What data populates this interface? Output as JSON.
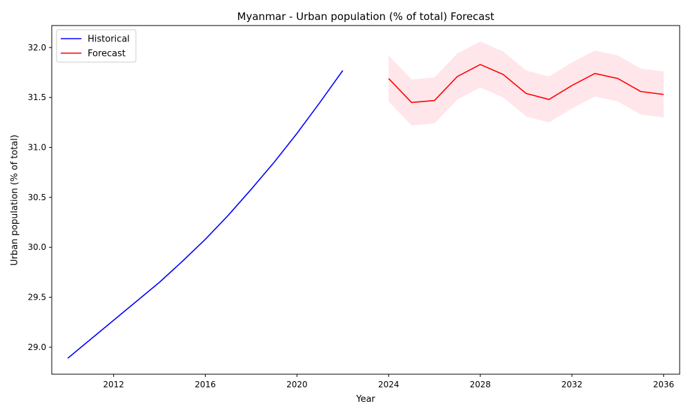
{
  "chart_data": {
    "type": "line",
    "title": "Myanmar - Urban population (% of total) Forecast",
    "xlabel": "Year",
    "ylabel": "Urban population (% of total)",
    "xlim": [
      2009.3,
      2036.7
    ],
    "ylim": [
      28.73,
      32.22
    ],
    "x_ticks": [
      2012,
      2016,
      2020,
      2024,
      2028,
      2032,
      2036
    ],
    "y_ticks": [
      29.0,
      29.5,
      30.0,
      30.5,
      31.0,
      31.5,
      32.0
    ],
    "grid": false,
    "legend_position": "upper-left",
    "series": [
      {
        "name": "Historical",
        "color": "#0000ff",
        "x": [
          2010,
          2011,
          2012,
          2013,
          2014,
          2015,
          2016,
          2017,
          2018,
          2019,
          2020,
          2021,
          2022
        ],
        "values": [
          28.89,
          29.08,
          29.27,
          29.46,
          29.65,
          29.86,
          30.08,
          30.32,
          30.58,
          30.85,
          31.14,
          31.45,
          31.77
        ]
      },
      {
        "name": "Forecast",
        "color": "#ff0000",
        "x": [
          2024,
          2025,
          2026,
          2027,
          2028,
          2029,
          2030,
          2031,
          2032,
          2033,
          2034,
          2035,
          2036
        ],
        "values": [
          31.69,
          31.45,
          31.47,
          31.71,
          31.83,
          31.73,
          31.54,
          31.48,
          31.62,
          31.74,
          31.69,
          31.56,
          31.53
        ],
        "lower": [
          31.46,
          31.22,
          31.24,
          31.48,
          31.6,
          31.5,
          31.31,
          31.25,
          31.39,
          31.51,
          31.46,
          31.33,
          31.3
        ],
        "upper": [
          31.92,
          31.68,
          31.7,
          31.94,
          32.06,
          31.96,
          31.77,
          31.71,
          31.85,
          31.97,
          31.92,
          31.79,
          31.76
        ],
        "band_color": "#ffc0cb"
      }
    ]
  }
}
